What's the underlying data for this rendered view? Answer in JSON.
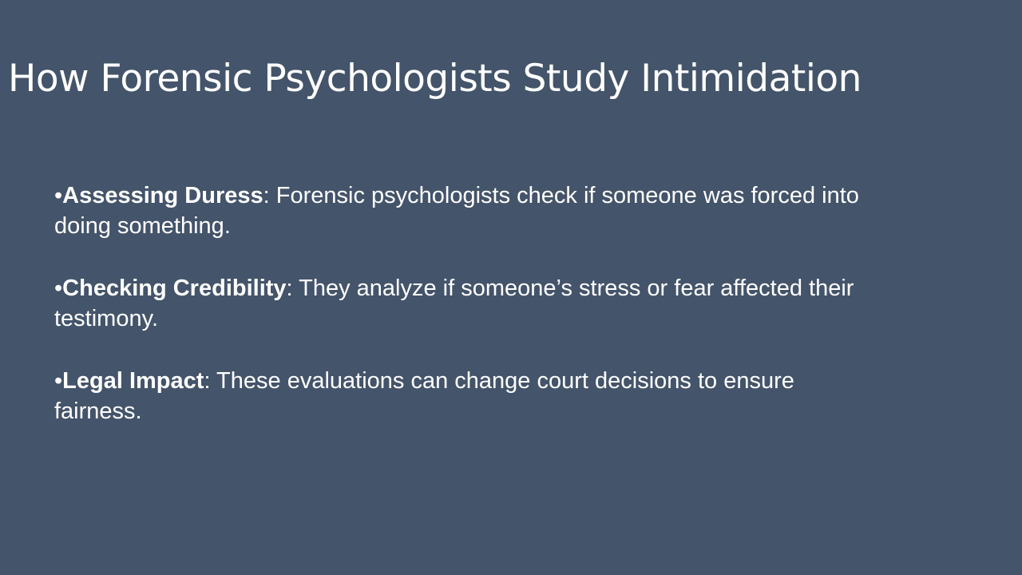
{
  "slide": {
    "title": "How Forensic Psychologists Study Intimidation",
    "background_color": "#44546a",
    "text_color": "#ffffff",
    "bullets": [
      {
        "marker": "•",
        "term": "Assessing Duress",
        "separator": ":",
        "text": " Forensic psychologists check if someone was forced into doing something."
      },
      {
        "marker": "•",
        "term": "Checking Credibility",
        "separator": ":",
        "text": " They analyze if someone’s stress or fear affected their testimony."
      },
      {
        "marker": "•",
        "term": "Legal Impact",
        "separator": ":",
        "text": " These evaluations can change court decisions to ensure fairness."
      }
    ]
  }
}
